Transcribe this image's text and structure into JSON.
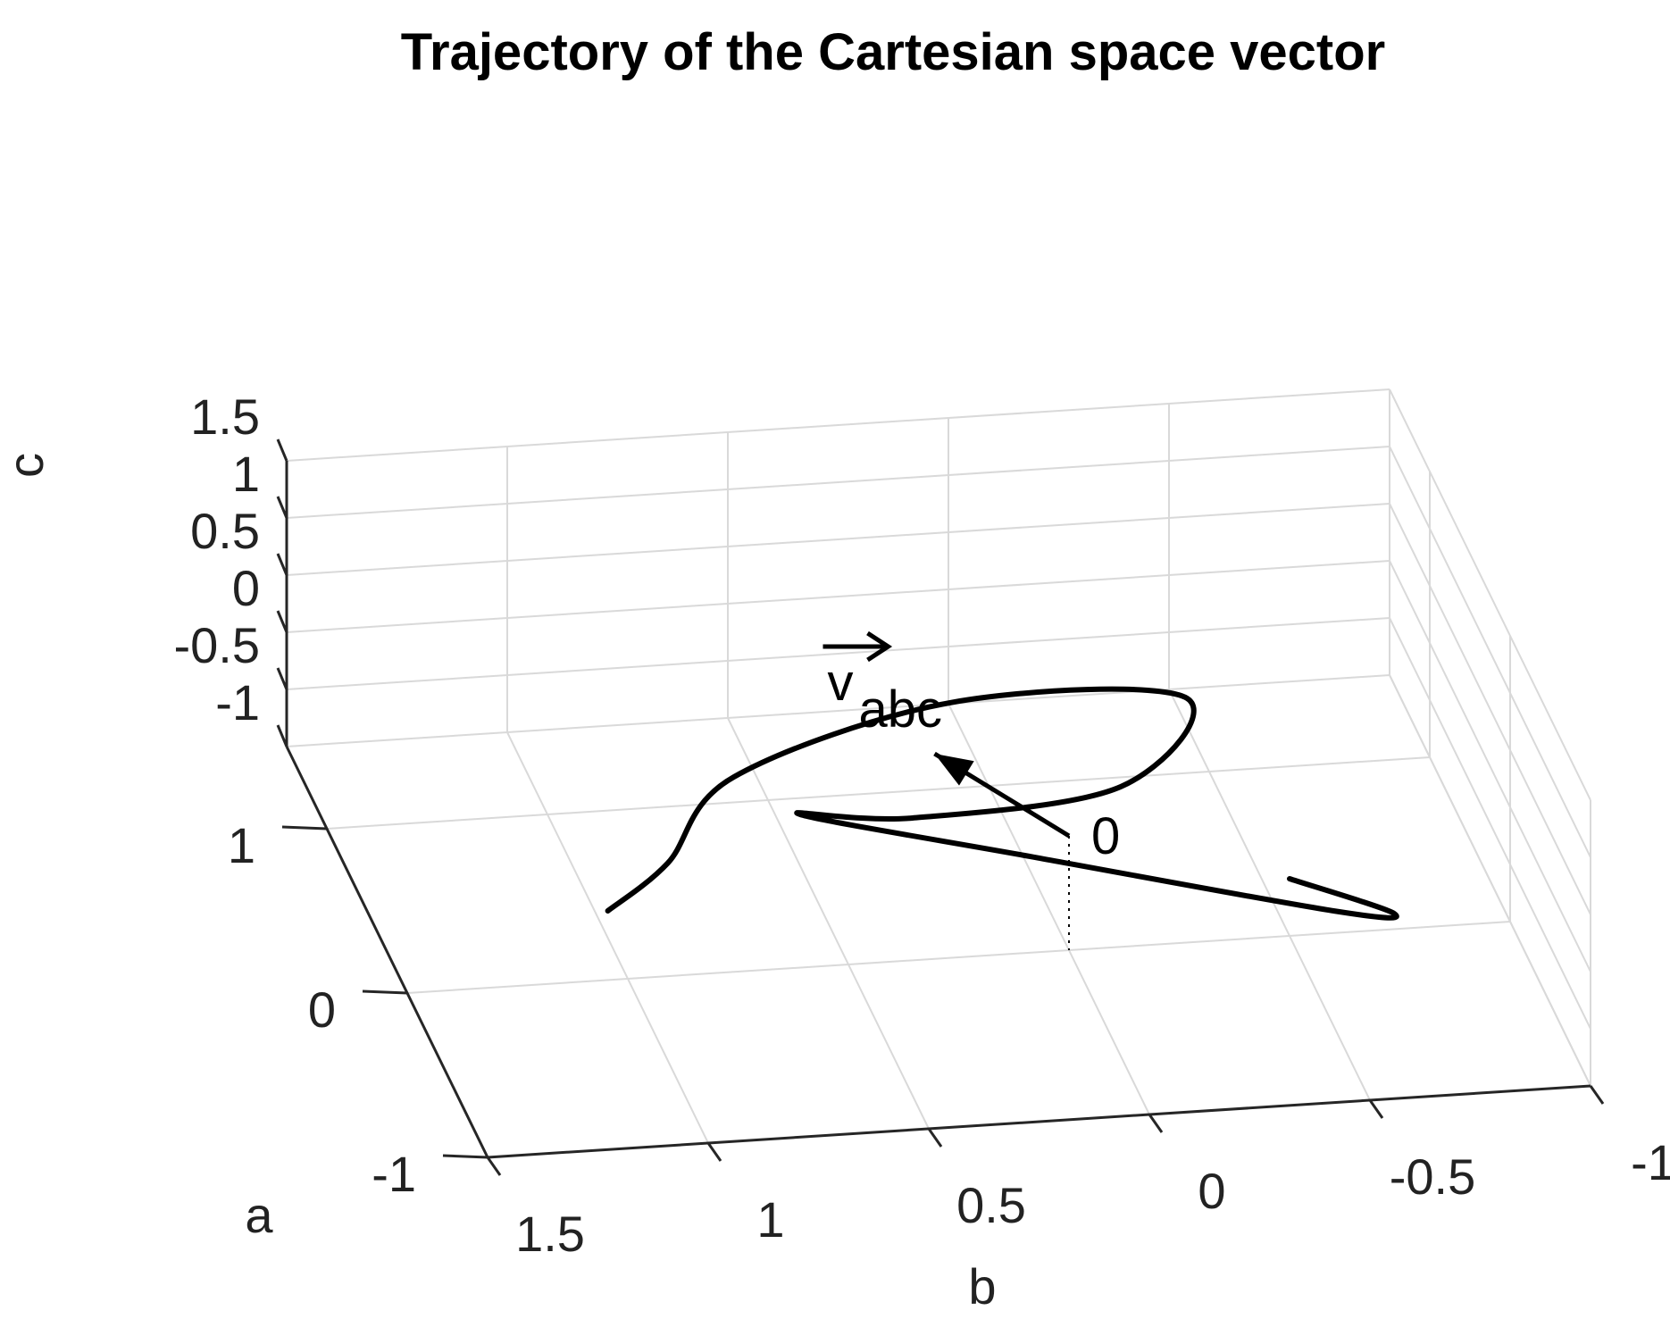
{
  "chart_data": {
    "type": "line",
    "title": "Trajectory of the Cartesian space vector",
    "xlabel": "a",
    "ylabel": "b",
    "zlabel": "c",
    "xlim": [
      -1,
      1.5
    ],
    "ylim": [
      -1,
      1.5
    ],
    "zlim": [
      -1,
      1.5
    ],
    "x_ticks": [
      "-1",
      "0",
      "1"
    ],
    "y_ticks": [
      "1.5",
      "1",
      "0.5",
      "0",
      "-0.5",
      "-1"
    ],
    "z_ticks": [
      "1.5",
      "1",
      "0.5",
      "0",
      "-0.5",
      "-1"
    ],
    "grid": true,
    "series": [
      {
        "style": "solid",
        "points": [
          {
            "a": -0.3,
            "b": 1.1,
            "c": 0.05
          },
          {
            "a": 0.6,
            "b": 0.8,
            "c": -0.9
          },
          {
            "a": 1.15,
            "b": 0.55,
            "c": -1.0
          },
          {
            "a": 0.9,
            "b": 0.1,
            "c": -0.1
          },
          {
            "a": 0.2,
            "b": -0.3,
            "c": 0.85
          },
          {
            "a": -0.1,
            "b": -0.1,
            "c": 0.55
          },
          {
            "a": 0.3,
            "b": 0.3,
            "c": -0.2
          },
          {
            "a": 0.6,
            "b": 0.5,
            "c": -0.55
          },
          {
            "a": -0.15,
            "b": 0.1,
            "c": 0.05
          },
          {
            "a": -0.85,
            "b": -0.45,
            "c": 0.45
          },
          {
            "a": -0.75,
            "b": -0.6,
            "c": 0.25
          },
          {
            "a": 0.0,
            "b": -0.5,
            "c": -0.5
          }
        ]
      }
    ],
    "annotations": [
      {
        "text": "0",
        "role": "origin marker",
        "a": 0,
        "b": 0,
        "c": 0
      },
      {
        "text_main": "v",
        "text_sub": "abc",
        "role": "space vector label with overhead arrow"
      }
    ]
  }
}
